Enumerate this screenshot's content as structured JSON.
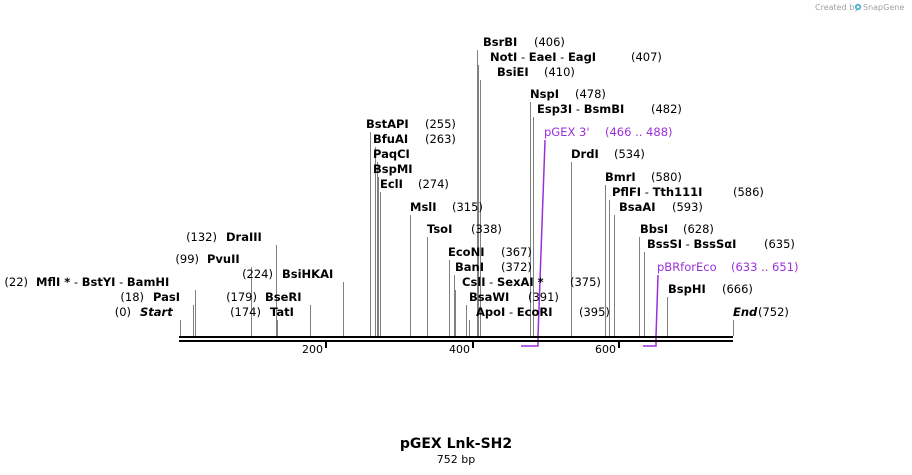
{
  "credit": {
    "prefix": "Created by",
    "brand": "SnapGene"
  },
  "title": "pGEX Lnk-SH2",
  "length_label": "752 bp",
  "ticks": [
    "200",
    "400",
    "600"
  ],
  "sites": [
    {
      "names": [
        "Start"
      ],
      "pos": "(0)",
      "italic": true
    },
    {
      "names": [
        "PasI"
      ],
      "pos": "(18)"
    },
    {
      "names": [
        "MflI *",
        "BstYI",
        "BamHI"
      ],
      "pos": "(22)"
    },
    {
      "names": [
        "PvuII"
      ],
      "pos": "(99)"
    },
    {
      "names": [
        "DraIII"
      ],
      "pos": "(132)"
    },
    {
      "names": [
        "TatI"
      ],
      "pos": "(174)"
    },
    {
      "names": [
        "BseRI"
      ],
      "pos": "(179)"
    },
    {
      "names": [
        "BsiHKAI"
      ],
      "pos": "(224)"
    },
    {
      "names": [
        "BstAPI"
      ],
      "pos": "(255)"
    },
    {
      "names": [
        "BfuAI"
      ],
      "pos": "(263)"
    },
    {
      "names": [
        "PaqCI"
      ],
      "pos": ""
    },
    {
      "names": [
        "BspMI"
      ],
      "pos": ""
    },
    {
      "names": [
        "EclI"
      ],
      "pos": "(274)"
    },
    {
      "names": [
        "MslI"
      ],
      "pos": "(315)"
    },
    {
      "names": [
        "TsoI"
      ],
      "pos": "(338)"
    },
    {
      "names": [
        "EcoNI"
      ],
      "pos": "(367)"
    },
    {
      "names": [
        "BanI"
      ],
      "pos": "(372)"
    },
    {
      "names": [
        "CslI",
        "SexAI *"
      ],
      "pos": "(375)"
    },
    {
      "names": [
        "BsaWI"
      ],
      "pos": "(391)"
    },
    {
      "names": [
        "ApoI",
        "EcoRI"
      ],
      "pos": "(395)"
    },
    {
      "names": [
        "BsrBI"
      ],
      "pos": "(406)"
    },
    {
      "names": [
        "NotI",
        "EaeI",
        "EagI"
      ],
      "pos": "(407)"
    },
    {
      "names": [
        "BsiEI"
      ],
      "pos": "(410)"
    },
    {
      "names": [
        "NspI"
      ],
      "pos": "(478)"
    },
    {
      "names": [
        "Esp3I",
        "BsmBI"
      ],
      "pos": "(482)"
    },
    {
      "names": [
        "DrdI"
      ],
      "pos": "(534)"
    },
    {
      "names": [
        "BmrI"
      ],
      "pos": "(580)"
    },
    {
      "names": [
        "PflFI",
        "Tth111I"
      ],
      "pos": "(586)"
    },
    {
      "names": [
        "BsaAI"
      ],
      "pos": "(593)"
    },
    {
      "names": [
        "BbsI"
      ],
      "pos": "(628)"
    },
    {
      "names": [
        "BssSI",
        "BssSαI"
      ],
      "pos": "(635)"
    },
    {
      "names": [
        "BspHI"
      ],
      "pos": "(666)"
    },
    {
      "names": [
        "End"
      ],
      "pos": "(752)",
      "italic": true
    }
  ],
  "features": [
    {
      "name": "pGEX 3'",
      "range": "(466 .. 488)",
      "color": "#9b30d9"
    },
    {
      "name": "pBRforEco",
      "range": "(633 .. 651)",
      "color": "#9b30d9"
    }
  ],
  "colors": {
    "feature": "#9b30d9",
    "line": "#808080",
    "backbone": "#000000"
  }
}
